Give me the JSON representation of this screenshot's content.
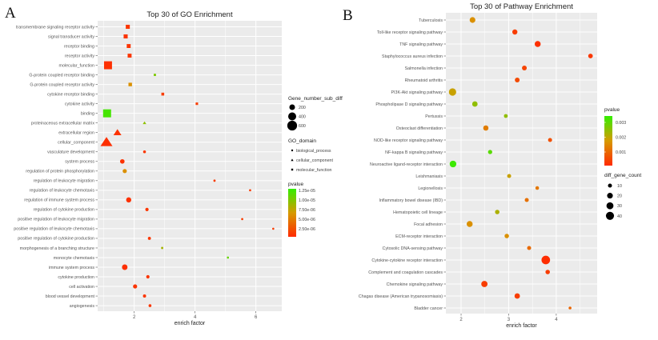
{
  "chart_data": [
    {
      "panel": "A",
      "type": "scatter",
      "title": "Top 30 of GO Enrichment",
      "xlabel": "enrich factor",
      "ylabel": "",
      "xlim": [
        0.8,
        6.85
      ],
      "xticks": [
        2,
        4,
        6
      ],
      "grid": true,
      "legend_placement": "right",
      "size_legend": {
        "title": "Gene_number_sub_diff",
        "values": [
          200,
          400,
          600
        ]
      },
      "shape_legend": {
        "title": "GO_domain",
        "entries": [
          "biological_process",
          "cellular_component",
          "molecular_function"
        ]
      },
      "color_legend": {
        "title": "pvalue",
        "labels": [
          "1.25e-05",
          "1.00e-05",
          "7.50e-06",
          "5.00e-06",
          "2.50e-06"
        ],
        "range": [
          1e-07,
          1.35e-05
        ],
        "low_color": "#ff2a00",
        "high_color": "#33ee00"
      },
      "points": [
        {
          "term": "transmembrane signaling receptor activity",
          "x": 1.79,
          "count": 160,
          "pvalue": 8e-07,
          "domain": "molecular_function"
        },
        {
          "term": "signal transducer activity",
          "x": 1.72,
          "count": 160,
          "pvalue": 7e-07,
          "domain": "molecular_function"
        },
        {
          "term": "receptor binding",
          "x": 1.82,
          "count": 150,
          "pvalue": 7e-07,
          "domain": "molecular_function"
        },
        {
          "term": "receptor activity",
          "x": 1.85,
          "count": 150,
          "pvalue": 8e-07,
          "domain": "molecular_function"
        },
        {
          "term": "molecular_function",
          "x": 1.14,
          "count": 620,
          "pvalue": 4e-07,
          "domain": "molecular_function"
        },
        {
          "term": "G-protein coupled receptor binding",
          "x": 2.68,
          "count": 50,
          "pvalue": 1.05e-05,
          "domain": "molecular_function"
        },
        {
          "term": "G-protein coupled receptor activity",
          "x": 1.87,
          "count": 120,
          "pvalue": 6.2e-06,
          "domain": "molecular_function"
        },
        {
          "term": "cytokine receptor binding",
          "x": 2.94,
          "count": 80,
          "pvalue": 1.2e-06,
          "domain": "molecular_function"
        },
        {
          "term": "cytokine activity",
          "x": 4.06,
          "count": 60,
          "pvalue": 1.2e-06,
          "domain": "molecular_function"
        },
        {
          "term": "binding",
          "x": 1.11,
          "count": 620,
          "pvalue": 1.28e-05,
          "domain": "molecular_function"
        },
        {
          "term": "proteinaceous extracellular matrix",
          "x": 2.34,
          "count": 60,
          "pvalue": 9.8e-06,
          "domain": "cellular_component"
        },
        {
          "term": "extracellular region",
          "x": 1.45,
          "count": 300,
          "pvalue": 6e-07,
          "domain": "cellular_component"
        },
        {
          "term": "cellular_component",
          "x": 1.09,
          "count": 680,
          "pvalue": 4e-07,
          "domain": "cellular_component"
        },
        {
          "term": "vasculature development",
          "x": 2.34,
          "count": 80,
          "pvalue": 8e-07,
          "domain": "biological_process"
        },
        {
          "term": "system process",
          "x": 1.61,
          "count": 200,
          "pvalue": 6e-07,
          "domain": "biological_process"
        },
        {
          "term": "regulation of protein phosphorylation",
          "x": 1.69,
          "count": 170,
          "pvalue": 6.2e-06,
          "domain": "biological_process"
        },
        {
          "term": "regulation of leukocyte migration",
          "x": 4.64,
          "count": 50,
          "pvalue": 1.2e-06,
          "domain": "biological_process"
        },
        {
          "term": "regulation of leukocyte chemotaxis",
          "x": 5.81,
          "count": 45,
          "pvalue": 1.2e-06,
          "domain": "biological_process"
        },
        {
          "term": "regulation of immune system process",
          "x": 1.82,
          "count": 260,
          "pvalue": 5e-07,
          "domain": "biological_process"
        },
        {
          "term": "regulation of cytokine production",
          "x": 2.42,
          "count": 110,
          "pvalue": 8e-07,
          "domain": "biological_process"
        },
        {
          "term": "positive regulation of leukocyte migration",
          "x": 5.55,
          "count": 45,
          "pvalue": 1.2e-06,
          "domain": "biological_process"
        },
        {
          "term": "positive regulation of leukocyte chemotaxis",
          "x": 6.57,
          "count": 40,
          "pvalue": 1.2e-06,
          "domain": "biological_process"
        },
        {
          "term": "positive regulation of cytokine production",
          "x": 2.5,
          "count": 90,
          "pvalue": 9e-07,
          "domain": "biological_process"
        },
        {
          "term": "morphogenesis of a branching structure",
          "x": 2.92,
          "count": 50,
          "pvalue": 8.8e-06,
          "domain": "biological_process"
        },
        {
          "term": "monocyte chemotaxis",
          "x": 5.08,
          "count": 25,
          "pvalue": 1.15e-05,
          "domain": "biological_process"
        },
        {
          "term": "immune system process",
          "x": 1.69,
          "count": 300,
          "pvalue": 4e-07,
          "domain": "biological_process"
        },
        {
          "term": "cytokine production",
          "x": 2.45,
          "count": 110,
          "pvalue": 8e-07,
          "domain": "biological_process"
        },
        {
          "term": "cell activation",
          "x": 2.03,
          "count": 170,
          "pvalue": 7e-07,
          "domain": "biological_process"
        },
        {
          "term": "blood vessel development",
          "x": 2.34,
          "count": 100,
          "pvalue": 8e-07,
          "domain": "biological_process"
        },
        {
          "term": "angiogenesis",
          "x": 2.52,
          "count": 80,
          "pvalue": 9e-07,
          "domain": "biological_process"
        }
      ]
    },
    {
      "panel": "B",
      "type": "scatter",
      "title": "Top 30 of Pathway Enrichment",
      "xlabel": "enrich factor",
      "ylabel": "",
      "xlim": [
        1.68,
        4.86
      ],
      "xticks": [
        2,
        3,
        4
      ],
      "grid": true,
      "legend_placement": "right",
      "color_legend": {
        "title": "pvalue",
        "labels": [
          "0.003",
          "0.002",
          "0.001"
        ],
        "range": [
          0,
          0.0035
        ],
        "low_color": "#ff2a00",
        "high_color": "#33ee00"
      },
      "size_legend": {
        "title": "diff_gene_count",
        "values": [
          10,
          20,
          30,
          40
        ]
      },
      "points": [
        {
          "term": "Tuberculosis",
          "x": 2.24,
          "count": 20,
          "pvalue": 0.0016
        },
        {
          "term": "Toll-like receptor signaling pathway",
          "x": 3.13,
          "count": 16,
          "pvalue": 0.0003
        },
        {
          "term": "TNF signaling pathway",
          "x": 3.61,
          "count": 22,
          "pvalue": 0.0001
        },
        {
          "term": "Staphylococcus aureus infection",
          "x": 4.72,
          "count": 13,
          "pvalue": 0.0002
        },
        {
          "term": "Salmonella infection",
          "x": 3.33,
          "count": 14,
          "pvalue": 0.0004
        },
        {
          "term": "Rheumatoid arthritis",
          "x": 3.18,
          "count": 14,
          "pvalue": 0.0005
        },
        {
          "term": "PI3K-Akt signaling pathway",
          "x": 1.82,
          "count": 33,
          "pvalue": 0.0019
        },
        {
          "term": "Phospholipase D signaling pathway",
          "x": 2.29,
          "count": 18,
          "pvalue": 0.0025
        },
        {
          "term": "Pertussis",
          "x": 2.94,
          "count": 9,
          "pvalue": 0.0025
        },
        {
          "term": "Osteoclast differentiation",
          "x": 2.52,
          "count": 17,
          "pvalue": 0.0013
        },
        {
          "term": "NOD-like receptor signaling pathway",
          "x": 3.87,
          "count": 10,
          "pvalue": 0.0006
        },
        {
          "term": "NF-kappa B signaling pathway",
          "x": 2.61,
          "count": 11,
          "pvalue": 0.0031
        },
        {
          "term": "Neuroactive ligand-receptor interaction",
          "x": 1.83,
          "count": 27,
          "pvalue": 0.0034
        },
        {
          "term": "Leishmaniasis",
          "x": 3.01,
          "count": 10,
          "pvalue": 0.0019
        },
        {
          "term": "Legionellosis",
          "x": 3.6,
          "count": 8,
          "pvalue": 0.0012
        },
        {
          "term": "Inflammatory bowel disease (IBD)",
          "x": 3.38,
          "count": 10,
          "pvalue": 0.0011
        },
        {
          "term": "Hematopoietic cell lineage",
          "x": 2.76,
          "count": 12,
          "pvalue": 0.0022
        },
        {
          "term": "Focal adhesion",
          "x": 2.18,
          "count": 22,
          "pvalue": 0.0016
        },
        {
          "term": "ECM-receptor interaction",
          "x": 2.96,
          "count": 12,
          "pvalue": 0.0016
        },
        {
          "term": "Cytosolic DNA-sensing pathway",
          "x": 3.43,
          "count": 10,
          "pvalue": 0.001
        },
        {
          "term": "Cytokine-cytokine receptor interaction",
          "x": 3.78,
          "count": 45,
          "pvalue": 5e-05
        },
        {
          "term": "Complement and coagulation cascades",
          "x": 3.82,
          "count": 12,
          "pvalue": 0.0003
        },
        {
          "term": "Chemokine signaling pathway",
          "x": 2.49,
          "count": 24,
          "pvalue": 0.0003
        },
        {
          "term": "Chagas disease (American trypanosomiasis)",
          "x": 3.18,
          "count": 18,
          "pvalue": 0.0003
        },
        {
          "term": "Bladder cancer",
          "x": 4.29,
          "count": 5,
          "pvalue": 0.0009
        }
      ]
    }
  ],
  "panel_labels": [
    "A",
    "B"
  ]
}
